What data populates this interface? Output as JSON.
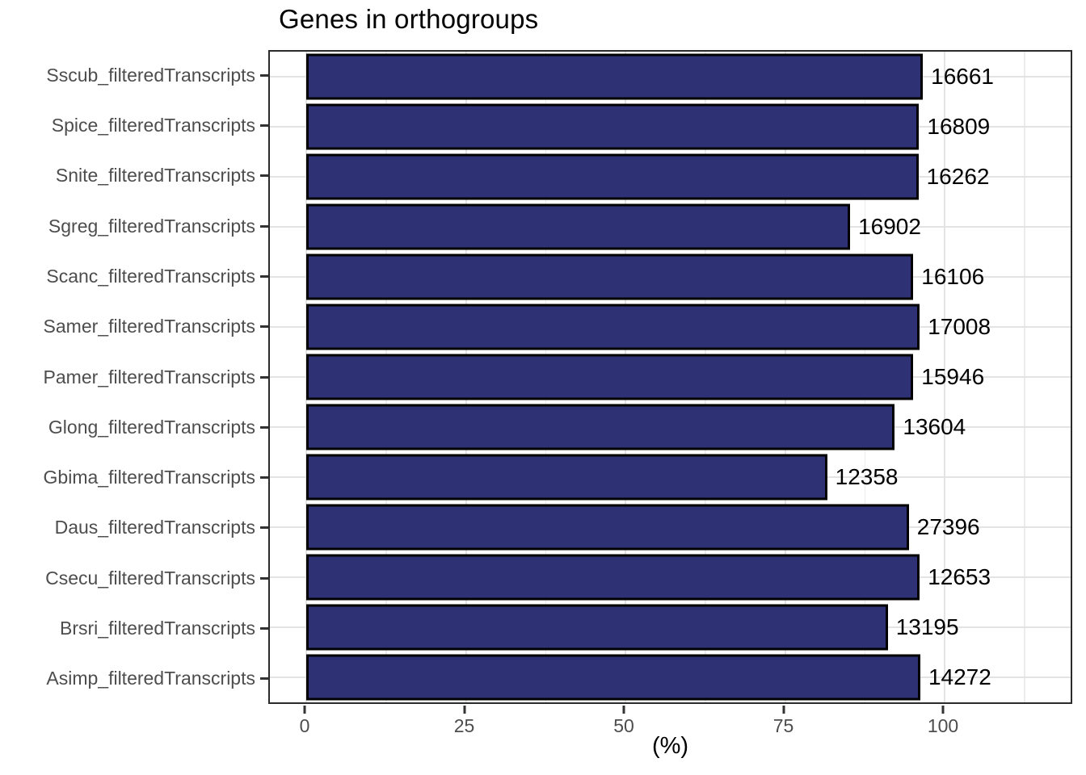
{
  "title": "Genes in orthogroups",
  "x_axis": {
    "label": "(%)",
    "major_ticks": [
      {
        "label": "0",
        "pct": 0
      },
      {
        "label": "25",
        "pct": 25
      },
      {
        "label": "50",
        "pct": 50
      },
      {
        "label": "75",
        "pct": 75
      },
      {
        "label": "100",
        "pct": 100
      }
    ],
    "minor_pcts": [
      12.5,
      37.5,
      62.5,
      87.5,
      112.5
    ]
  },
  "bars": [
    {
      "label": "Sscub_filteredTranscripts",
      "value": "16661",
      "pct": 96.6
    },
    {
      "label": "Spice_filteredTranscripts",
      "value": "16809",
      "pct": 96.0
    },
    {
      "label": "Snite_filteredTranscripts",
      "value": "16262",
      "pct": 95.9
    },
    {
      "label": "Sgreg_filteredTranscripts",
      "value": "16902",
      "pct": 85.2
    },
    {
      "label": "Scanc_filteredTranscripts",
      "value": "16106",
      "pct": 95.1
    },
    {
      "label": "Samer_filteredTranscripts",
      "value": "17008",
      "pct": 96.1
    },
    {
      "label": "Pamer_filteredTranscripts",
      "value": "15946",
      "pct": 95.1
    },
    {
      "label": "Glong_filteredTranscripts",
      "value": "13604",
      "pct": 92.2
    },
    {
      "label": "Gbima_filteredTranscripts",
      "value": "12358",
      "pct": 81.6
    },
    {
      "label": "Daus_filteredTranscripts",
      "value": "27396",
      "pct": 94.4
    },
    {
      "label": "Csecu_filteredTranscripts",
      "value": "12653",
      "pct": 96.1
    },
    {
      "label": "Brsri_filteredTranscripts",
      "value": "13195",
      "pct": 91.1
    },
    {
      "label": "Asimp_filteredTranscripts",
      "value": "14272",
      "pct": 96.2
    }
  ],
  "colors": {
    "bar_fill": "#2e3274",
    "bar_border": "#000000",
    "grid_major": "#e3e3e3",
    "grid_minor": "#ececec",
    "axis_text": "#4d4d4d",
    "panel_border": "#2b2b2b"
  },
  "chart_data": {
    "type": "bar",
    "orientation": "horizontal",
    "title": "Genes in orthogroups",
    "xlabel": "(%)",
    "ylabel": "",
    "categories": [
      "Sscub_filteredTranscripts",
      "Spice_filteredTranscripts",
      "Snite_filteredTranscripts",
      "Sgreg_filteredTranscripts",
      "Scanc_filteredTranscripts",
      "Samer_filteredTranscripts",
      "Pamer_filteredTranscripts",
      "Glong_filteredTranscripts",
      "Gbima_filteredTranscripts",
      "Daus_filteredTranscripts",
      "Csecu_filteredTranscripts",
      "Brsri_filteredTranscripts",
      "Asimp_filteredTranscripts"
    ],
    "values_pct": [
      96.6,
      96.0,
      95.9,
      85.2,
      95.1,
      96.1,
      95.1,
      92.2,
      81.6,
      94.4,
      96.1,
      91.1,
      96.2
    ],
    "bar_labels": [
      16661,
      16809,
      16262,
      16902,
      16106,
      17008,
      15946,
      13604,
      12358,
      27396,
      12653,
      13195,
      14272
    ],
    "x_ticks": [
      0,
      25,
      50,
      75,
      100
    ],
    "xlim": [
      -5.7,
      120.3
    ],
    "grid": true,
    "legend": false,
    "bar_color": "#2e3274"
  }
}
